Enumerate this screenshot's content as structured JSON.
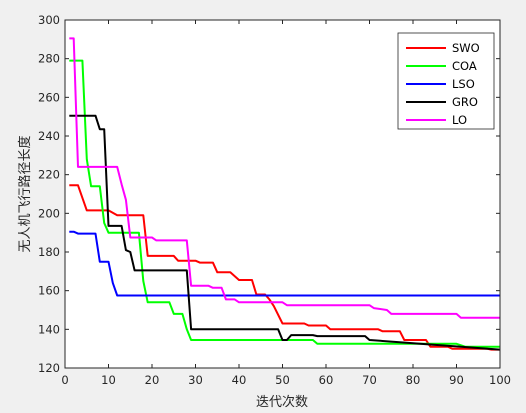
{
  "chart_data": {
    "type": "line",
    "title": "",
    "xlabel": "迭代次数",
    "ylabel": "无人机飞行路径长度",
    "xlim": [
      0,
      100
    ],
    "ylim": [
      120,
      300
    ],
    "xticks": [
      0,
      10,
      20,
      30,
      40,
      50,
      60,
      70,
      80,
      90,
      100
    ],
    "yticks": [
      120,
      140,
      160,
      180,
      200,
      220,
      240,
      260,
      280,
      300
    ],
    "grid": false,
    "legend_position": "top-right",
    "series": [
      {
        "name": "SWO",
        "color": "#ff0000",
        "points": [
          [
            1,
            214.5
          ],
          [
            3,
            214.5
          ],
          [
            5,
            201.5
          ],
          [
            10,
            201.5
          ],
          [
            12,
            199
          ],
          [
            18,
            199
          ],
          [
            19,
            178
          ],
          [
            25,
            178
          ],
          [
            26,
            175.5
          ],
          [
            30,
            175.5
          ],
          [
            31,
            174.5
          ],
          [
            34,
            174.5
          ],
          [
            35,
            169.5
          ],
          [
            38,
            169.5
          ],
          [
            40,
            165.5
          ],
          [
            43,
            165.5
          ],
          [
            44,
            158
          ],
          [
            46,
            158
          ],
          [
            47,
            155.5
          ],
          [
            48,
            152
          ],
          [
            50,
            143
          ],
          [
            55,
            143
          ],
          [
            56,
            142
          ],
          [
            60,
            142
          ],
          [
            61,
            140
          ],
          [
            72,
            140
          ],
          [
            73,
            139
          ],
          [
            77,
            139
          ],
          [
            78,
            134.5
          ],
          [
            83,
            134.5
          ],
          [
            84,
            131
          ],
          [
            88,
            131
          ],
          [
            89,
            130
          ],
          [
            97,
            130
          ],
          [
            98,
            129.5
          ],
          [
            100,
            129.5
          ]
        ]
      },
      {
        "name": "COA",
        "color": "#00ff00",
        "points": [
          [
            1,
            279
          ],
          [
            4,
            279
          ],
          [
            5,
            228
          ],
          [
            6,
            214
          ],
          [
            8,
            214
          ],
          [
            9,
            195
          ],
          [
            10,
            190
          ],
          [
            17,
            190
          ],
          [
            18,
            165
          ],
          [
            19,
            154
          ],
          [
            24,
            154
          ],
          [
            25,
            148
          ],
          [
            27,
            148
          ],
          [
            28,
            140
          ],
          [
            29,
            134.5
          ],
          [
            57,
            134.5
          ],
          [
            58,
            132.5
          ],
          [
            90,
            132.5
          ],
          [
            92,
            131
          ],
          [
            100,
            131
          ]
        ]
      },
      {
        "name": "LSO",
        "color": "#0000ff",
        "points": [
          [
            1,
            190.5
          ],
          [
            2,
            190.5
          ],
          [
            3,
            189.5
          ],
          [
            7,
            189.5
          ],
          [
            8,
            175
          ],
          [
            10,
            175
          ],
          [
            11,
            164
          ],
          [
            12,
            157.5
          ],
          [
            100,
            157.5
          ]
        ]
      },
      {
        "name": "GRO",
        "color": "#000000",
        "points": [
          [
            1,
            250.5
          ],
          [
            7,
            250.5
          ],
          [
            8,
            243.5
          ],
          [
            9,
            243.5
          ],
          [
            10,
            193.5
          ],
          [
            13,
            193.5
          ],
          [
            14,
            181
          ],
          [
            15,
            180
          ],
          [
            16,
            170.5
          ],
          [
            28,
            170.5
          ],
          [
            29,
            140
          ],
          [
            49,
            140
          ],
          [
            50,
            134.5
          ],
          [
            51,
            134.5
          ],
          [
            52,
            137
          ],
          [
            57,
            137
          ],
          [
            58,
            136.5
          ],
          [
            69,
            136.5
          ],
          [
            70,
            134.5
          ],
          [
            100,
            129.5
          ]
        ]
      },
      {
        "name": "LO",
        "color": "#ff00ff",
        "points": [
          [
            1,
            290.5
          ],
          [
            2,
            290.5
          ],
          [
            3,
            224
          ],
          [
            12,
            224
          ],
          [
            13,
            215
          ],
          [
            14,
            207
          ],
          [
            15,
            187.5
          ],
          [
            20,
            187.5
          ],
          [
            21,
            186
          ],
          [
            28,
            186
          ],
          [
            29,
            162.5
          ],
          [
            33,
            162.5
          ],
          [
            34,
            161.5
          ],
          [
            36,
            161.5
          ],
          [
            37,
            155.5
          ],
          [
            39,
            155.5
          ],
          [
            40,
            154
          ],
          [
            50,
            154
          ],
          [
            51,
            152.5
          ],
          [
            70,
            152.5
          ],
          [
            71,
            151
          ],
          [
            74,
            150
          ],
          [
            75,
            148
          ],
          [
            90,
            148
          ],
          [
            91,
            146
          ],
          [
            100,
            146
          ]
        ]
      }
    ]
  }
}
